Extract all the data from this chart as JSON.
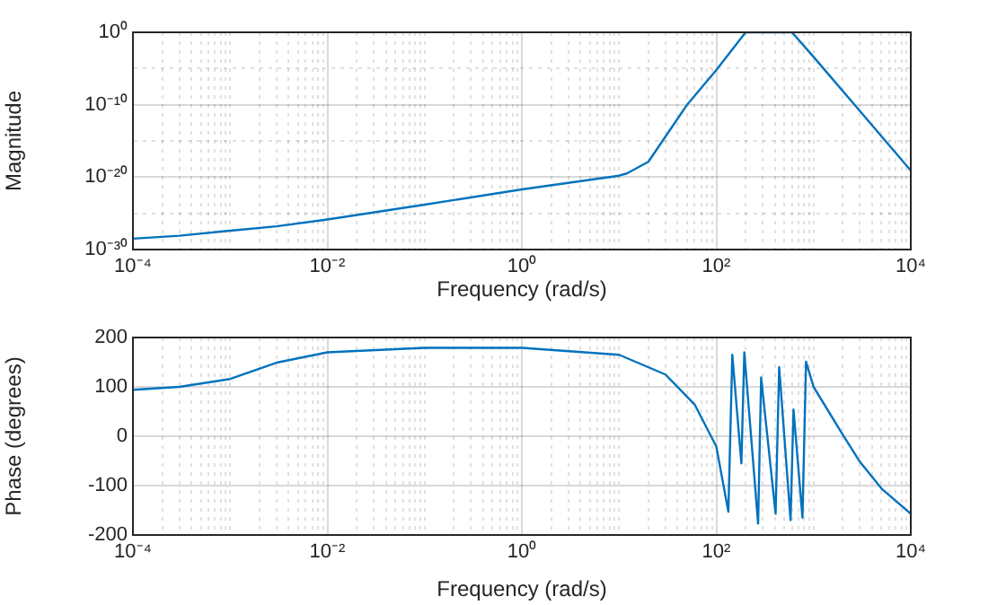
{
  "chart_data": [
    {
      "type": "line",
      "xlabel": "Frequency (rad/s)",
      "ylabel": "Magnitude",
      "log": "xy",
      "grid": true,
      "marker": "none",
      "legend": false,
      "xlim": [
        0.0001,
        10000
      ],
      "ylim": [
        1e-30,
        1
      ],
      "xticks": [
        {
          "value": 0.0001,
          "label": "10⁻⁴"
        },
        {
          "value": 0.0002,
          "label": null
        },
        {
          "value": 0.0003,
          "label": null
        },
        {
          "value": 0.0004,
          "label": null
        },
        {
          "value": 0.0005,
          "label": null
        },
        {
          "value": 0.0006,
          "label": null
        },
        {
          "value": 0.0007,
          "label": null
        },
        {
          "value": 0.0008,
          "label": null
        },
        {
          "value": 0.0009,
          "label": null
        },
        {
          "value": 0.001,
          "label": null
        },
        {
          "value": 0.002,
          "label": null
        },
        {
          "value": 0.003,
          "label": null
        },
        {
          "value": 0.004,
          "label": null
        },
        {
          "value": 0.005,
          "label": null
        },
        {
          "value": 0.006,
          "label": null
        },
        {
          "value": 0.007,
          "label": null
        },
        {
          "value": 0.008,
          "label": null
        },
        {
          "value": 0.009,
          "label": null
        },
        {
          "value": 0.01,
          "label": "10⁻²"
        },
        {
          "value": 0.02,
          "label": null
        },
        {
          "value": 0.03,
          "label": null
        },
        {
          "value": 0.04,
          "label": null
        },
        {
          "value": 0.05,
          "label": null
        },
        {
          "value": 0.06,
          "label": null
        },
        {
          "value": 0.07,
          "label": null
        },
        {
          "value": 0.08,
          "label": null
        },
        {
          "value": 0.09,
          "label": null
        },
        {
          "value": 0.1,
          "label": null
        },
        {
          "value": 0.2,
          "label": null
        },
        {
          "value": 0.3,
          "label": null
        },
        {
          "value": 0.4,
          "label": null
        },
        {
          "value": 0.5,
          "label": null
        },
        {
          "value": 0.6,
          "label": null
        },
        {
          "value": 0.7,
          "label": null
        },
        {
          "value": 0.8,
          "label": null
        },
        {
          "value": 0.9,
          "label": null
        },
        {
          "value": 1,
          "label": "10⁰"
        },
        {
          "value": 2,
          "label": null
        },
        {
          "value": 3,
          "label": null
        },
        {
          "value": 4,
          "label": null
        },
        {
          "value": 5,
          "label": null
        },
        {
          "value": 6,
          "label": null
        },
        {
          "value": 7,
          "label": null
        },
        {
          "value": 8,
          "label": null
        },
        {
          "value": 9,
          "label": null
        },
        {
          "value": 10,
          "label": null
        },
        {
          "value": 20,
          "label": null
        },
        {
          "value": 30,
          "label": null
        },
        {
          "value": 40,
          "label": null
        },
        {
          "value": 50,
          "label": null
        },
        {
          "value": 60,
          "label": null
        },
        {
          "value": 70,
          "label": null
        },
        {
          "value": 80,
          "label": null
        },
        {
          "value": 90,
          "label": null
        },
        {
          "value": 100,
          "label": "10²"
        },
        {
          "value": 200,
          "label": null
        },
        {
          "value": 300,
          "label": null
        },
        {
          "value": 400,
          "label": null
        },
        {
          "value": 500,
          "label": null
        },
        {
          "value": 600,
          "label": null
        },
        {
          "value": 700,
          "label": null
        },
        {
          "value": 800,
          "label": null
        },
        {
          "value": 900,
          "label": null
        },
        {
          "value": 1000,
          "label": null
        },
        {
          "value": 2000,
          "label": null
        },
        {
          "value": 3000,
          "label": null
        },
        {
          "value": 4000,
          "label": null
        },
        {
          "value": 5000,
          "label": null
        },
        {
          "value": 6000,
          "label": null
        },
        {
          "value": 7000,
          "label": null
        },
        {
          "value": 8000,
          "label": null
        },
        {
          "value": 9000,
          "label": null
        },
        {
          "value": 10000,
          "label": "10⁴"
        }
      ],
      "yticks": [
        {
          "value": 1e-30,
          "label": "10⁻³⁰"
        },
        {
          "value": 1e-25,
          "label": null
        },
        {
          "value": 1e-20,
          "label": "10⁻²⁰"
        },
        {
          "value": 1e-15,
          "label": null
        },
        {
          "value": 1e-10,
          "label": "10⁻¹⁰"
        },
        {
          "value": 1e-05,
          "label": null
        },
        {
          "value": 1,
          "label": "10⁰"
        }
      ],
      "series": [
        {
          "color": "#0072bd",
          "x": [
            0.0001,
            0.0003,
            0.001,
            0.003,
            0.01,
            0.1,
            1,
            10,
            12,
            20,
            50,
            100,
            200,
            600,
            1000,
            3000,
            10000
          ],
          "values": [
            3.2e-29,
            8e-29,
            4e-28,
            1.6e-27,
            1.4e-26,
            1.6e-24,
            2e-22,
            1.6e-20,
            3.2e-20,
            1.3e-18,
            1e-10,
            6.3e-06,
            1,
            1,
            0.0004,
            1.3e-11,
            8e-20
          ]
        }
      ]
    },
    {
      "type": "line",
      "xlabel": "Frequency (rad/s)",
      "ylabel": "Phase (degrees)",
      "log": "x",
      "grid": true,
      "marker": "none",
      "legend": false,
      "xlim": [
        0.0001,
        10000
      ],
      "ylim": [
        -200,
        200
      ],
      "xticks": [
        {
          "value": 0.0001,
          "label": "10⁻⁴"
        },
        {
          "value": 0.0002,
          "label": null
        },
        {
          "value": 0.0003,
          "label": null
        },
        {
          "value": 0.0004,
          "label": null
        },
        {
          "value": 0.0005,
          "label": null
        },
        {
          "value": 0.0006,
          "label": null
        },
        {
          "value": 0.0007,
          "label": null
        },
        {
          "value": 0.0008,
          "label": null
        },
        {
          "value": 0.0009,
          "label": null
        },
        {
          "value": 0.001,
          "label": null
        },
        {
          "value": 0.002,
          "label": null
        },
        {
          "value": 0.003,
          "label": null
        },
        {
          "value": 0.004,
          "label": null
        },
        {
          "value": 0.005,
          "label": null
        },
        {
          "value": 0.006,
          "label": null
        },
        {
          "value": 0.007,
          "label": null
        },
        {
          "value": 0.008,
          "label": null
        },
        {
          "value": 0.009,
          "label": null
        },
        {
          "value": 0.01,
          "label": "10⁻²"
        },
        {
          "value": 0.02,
          "label": null
        },
        {
          "value": 0.03,
          "label": null
        },
        {
          "value": 0.04,
          "label": null
        },
        {
          "value": 0.05,
          "label": null
        },
        {
          "value": 0.06,
          "label": null
        },
        {
          "value": 0.07,
          "label": null
        },
        {
          "value": 0.08,
          "label": null
        },
        {
          "value": 0.09,
          "label": null
        },
        {
          "value": 0.1,
          "label": null
        },
        {
          "value": 0.2,
          "label": null
        },
        {
          "value": 0.3,
          "label": null
        },
        {
          "value": 0.4,
          "label": null
        },
        {
          "value": 0.5,
          "label": null
        },
        {
          "value": 0.6,
          "label": null
        },
        {
          "value": 0.7,
          "label": null
        },
        {
          "value": 0.8,
          "label": null
        },
        {
          "value": 0.9,
          "label": null
        },
        {
          "value": 1,
          "label": "10⁰"
        },
        {
          "value": 2,
          "label": null
        },
        {
          "value": 3,
          "label": null
        },
        {
          "value": 4,
          "label": null
        },
        {
          "value": 5,
          "label": null
        },
        {
          "value": 6,
          "label": null
        },
        {
          "value": 7,
          "label": null
        },
        {
          "value": 8,
          "label": null
        },
        {
          "value": 9,
          "label": null
        },
        {
          "value": 10,
          "label": null
        },
        {
          "value": 20,
          "label": null
        },
        {
          "value": 30,
          "label": null
        },
        {
          "value": 40,
          "label": null
        },
        {
          "value": 50,
          "label": null
        },
        {
          "value": 60,
          "label": null
        },
        {
          "value": 70,
          "label": null
        },
        {
          "value": 80,
          "label": null
        },
        {
          "value": 90,
          "label": null
        },
        {
          "value": 100,
          "label": "10²"
        },
        {
          "value": 200,
          "label": null
        },
        {
          "value": 300,
          "label": null
        },
        {
          "value": 400,
          "label": null
        },
        {
          "value": 500,
          "label": null
        },
        {
          "value": 600,
          "label": null
        },
        {
          "value": 700,
          "label": null
        },
        {
          "value": 800,
          "label": null
        },
        {
          "value": 900,
          "label": null
        },
        {
          "value": 1000,
          "label": null
        },
        {
          "value": 2000,
          "label": null
        },
        {
          "value": 3000,
          "label": null
        },
        {
          "value": 4000,
          "label": null
        },
        {
          "value": 5000,
          "label": null
        },
        {
          "value": 6000,
          "label": null
        },
        {
          "value": 7000,
          "label": null
        },
        {
          "value": 8000,
          "label": null
        },
        {
          "value": 9000,
          "label": null
        },
        {
          "value": 10000,
          "label": "10⁴"
        }
      ],
      "yticks": [
        -200,
        -100,
        0,
        100,
        200
      ],
      "series": [
        {
          "color": "#0072bd",
          "x": [
            0.0001,
            0.0003,
            0.001,
            0.003,
            0.01,
            0.1,
            1,
            10,
            30,
            60,
            100,
            133,
            146,
            181,
            194,
            269,
            289,
            407,
            443,
            580,
            622,
            769,
            837,
            1000,
            2000,
            3000,
            5000,
            10000
          ],
          "values": [
            94,
            100,
            116,
            149,
            170,
            179,
            179,
            165,
            125,
            64,
            -21,
            -153,
            165,
            -55,
            170,
            -177,
            119,
            -157,
            140,
            -170,
            54,
            -165,
            151,
            100,
            3,
            -52,
            -106,
            -157
          ]
        }
      ]
    }
  ]
}
